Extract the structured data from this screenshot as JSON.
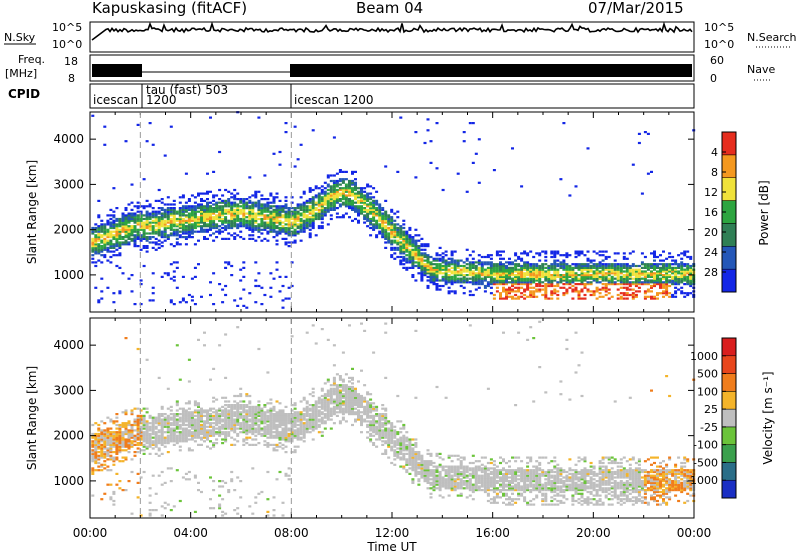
{
  "header": {
    "station": "Kapuskasing (fitACF)",
    "beam": "Beam 04",
    "date": "07/Mar/2015"
  },
  "strip_labels": {
    "nsky": "N.Sky",
    "nsky_ticks": [
      "10^5",
      "10^0"
    ],
    "nsearch": "N.Search",
    "nsearch_ticks": [
      "10^5",
      "10^0"
    ],
    "freq": "Freq.",
    "freq_unit": "[MHz]",
    "freq_ticks": [
      "18",
      "8"
    ],
    "nave": "Nave",
    "nave_ticks": [
      "60",
      "0"
    ],
    "cpid": "CPID",
    "cpid_segments": [
      {
        "label": "icescan",
        "sub": "",
        "start_h": 0.0
      },
      {
        "label": "tau (fast) 503",
        "sub": "1200",
        "start_h": 2.0
      },
      {
        "label": "icescan 1200",
        "sub": "",
        "start_h": 8.0
      }
    ]
  },
  "chart_data": [
    {
      "type": "heatmap",
      "name": "power-panel",
      "ylabel": "Slant Range [km]",
      "xlabel": "",
      "xlim_hours": [
        0,
        24
      ],
      "ylim": [
        180,
        4600
      ],
      "yticks": [
        1000,
        2000,
        3000,
        4000
      ],
      "colorbar": {
        "label": "Power [dB]",
        "ticks": [
          "4",
          "8",
          "12",
          "16",
          "20",
          "24",
          "28"
        ],
        "colors": [
          "#1326e6",
          "#2457b8",
          "#2f7f55",
          "#2da540",
          "#f0e23a",
          "#f4981f",
          "#e62d1e"
        ]
      },
      "features": [
        {
          "label": "main echo band",
          "start_h": 0.0,
          "end_h": 13.0,
          "range_km": [
            1400,
            2900
          ]
        },
        {
          "label": "low range band",
          "start_h": 13.0,
          "end_h": 24.0,
          "range_km": [
            600,
            1200
          ]
        }
      ]
    },
    {
      "type": "heatmap",
      "name": "velocity-panel",
      "ylabel": "Slant Range [km]",
      "xlabel": "Time UT",
      "xlim_hours": [
        0,
        24
      ],
      "ylim": [
        180,
        4600
      ],
      "yticks": [
        1000,
        2000,
        3000,
        4000
      ],
      "xticks": [
        "00:00",
        "04:00",
        "08:00",
        "12:00",
        "16:00",
        "20:00",
        "00:00"
      ],
      "colorbar": {
        "label": "Velocity [m s⁻¹]",
        "ticks": [
          "1000",
          "500",
          "100",
          "25",
          "-25",
          "-100",
          "-500",
          "-1000"
        ],
        "colors": [
          "#1a2fc4",
          "#2a6e88",
          "#3aa04c",
          "#6bc43a",
          "#bfbfbf",
          "#f4b42a",
          "#f07d1c",
          "#e8461c",
          "#d91e1e"
        ]
      }
    }
  ]
}
